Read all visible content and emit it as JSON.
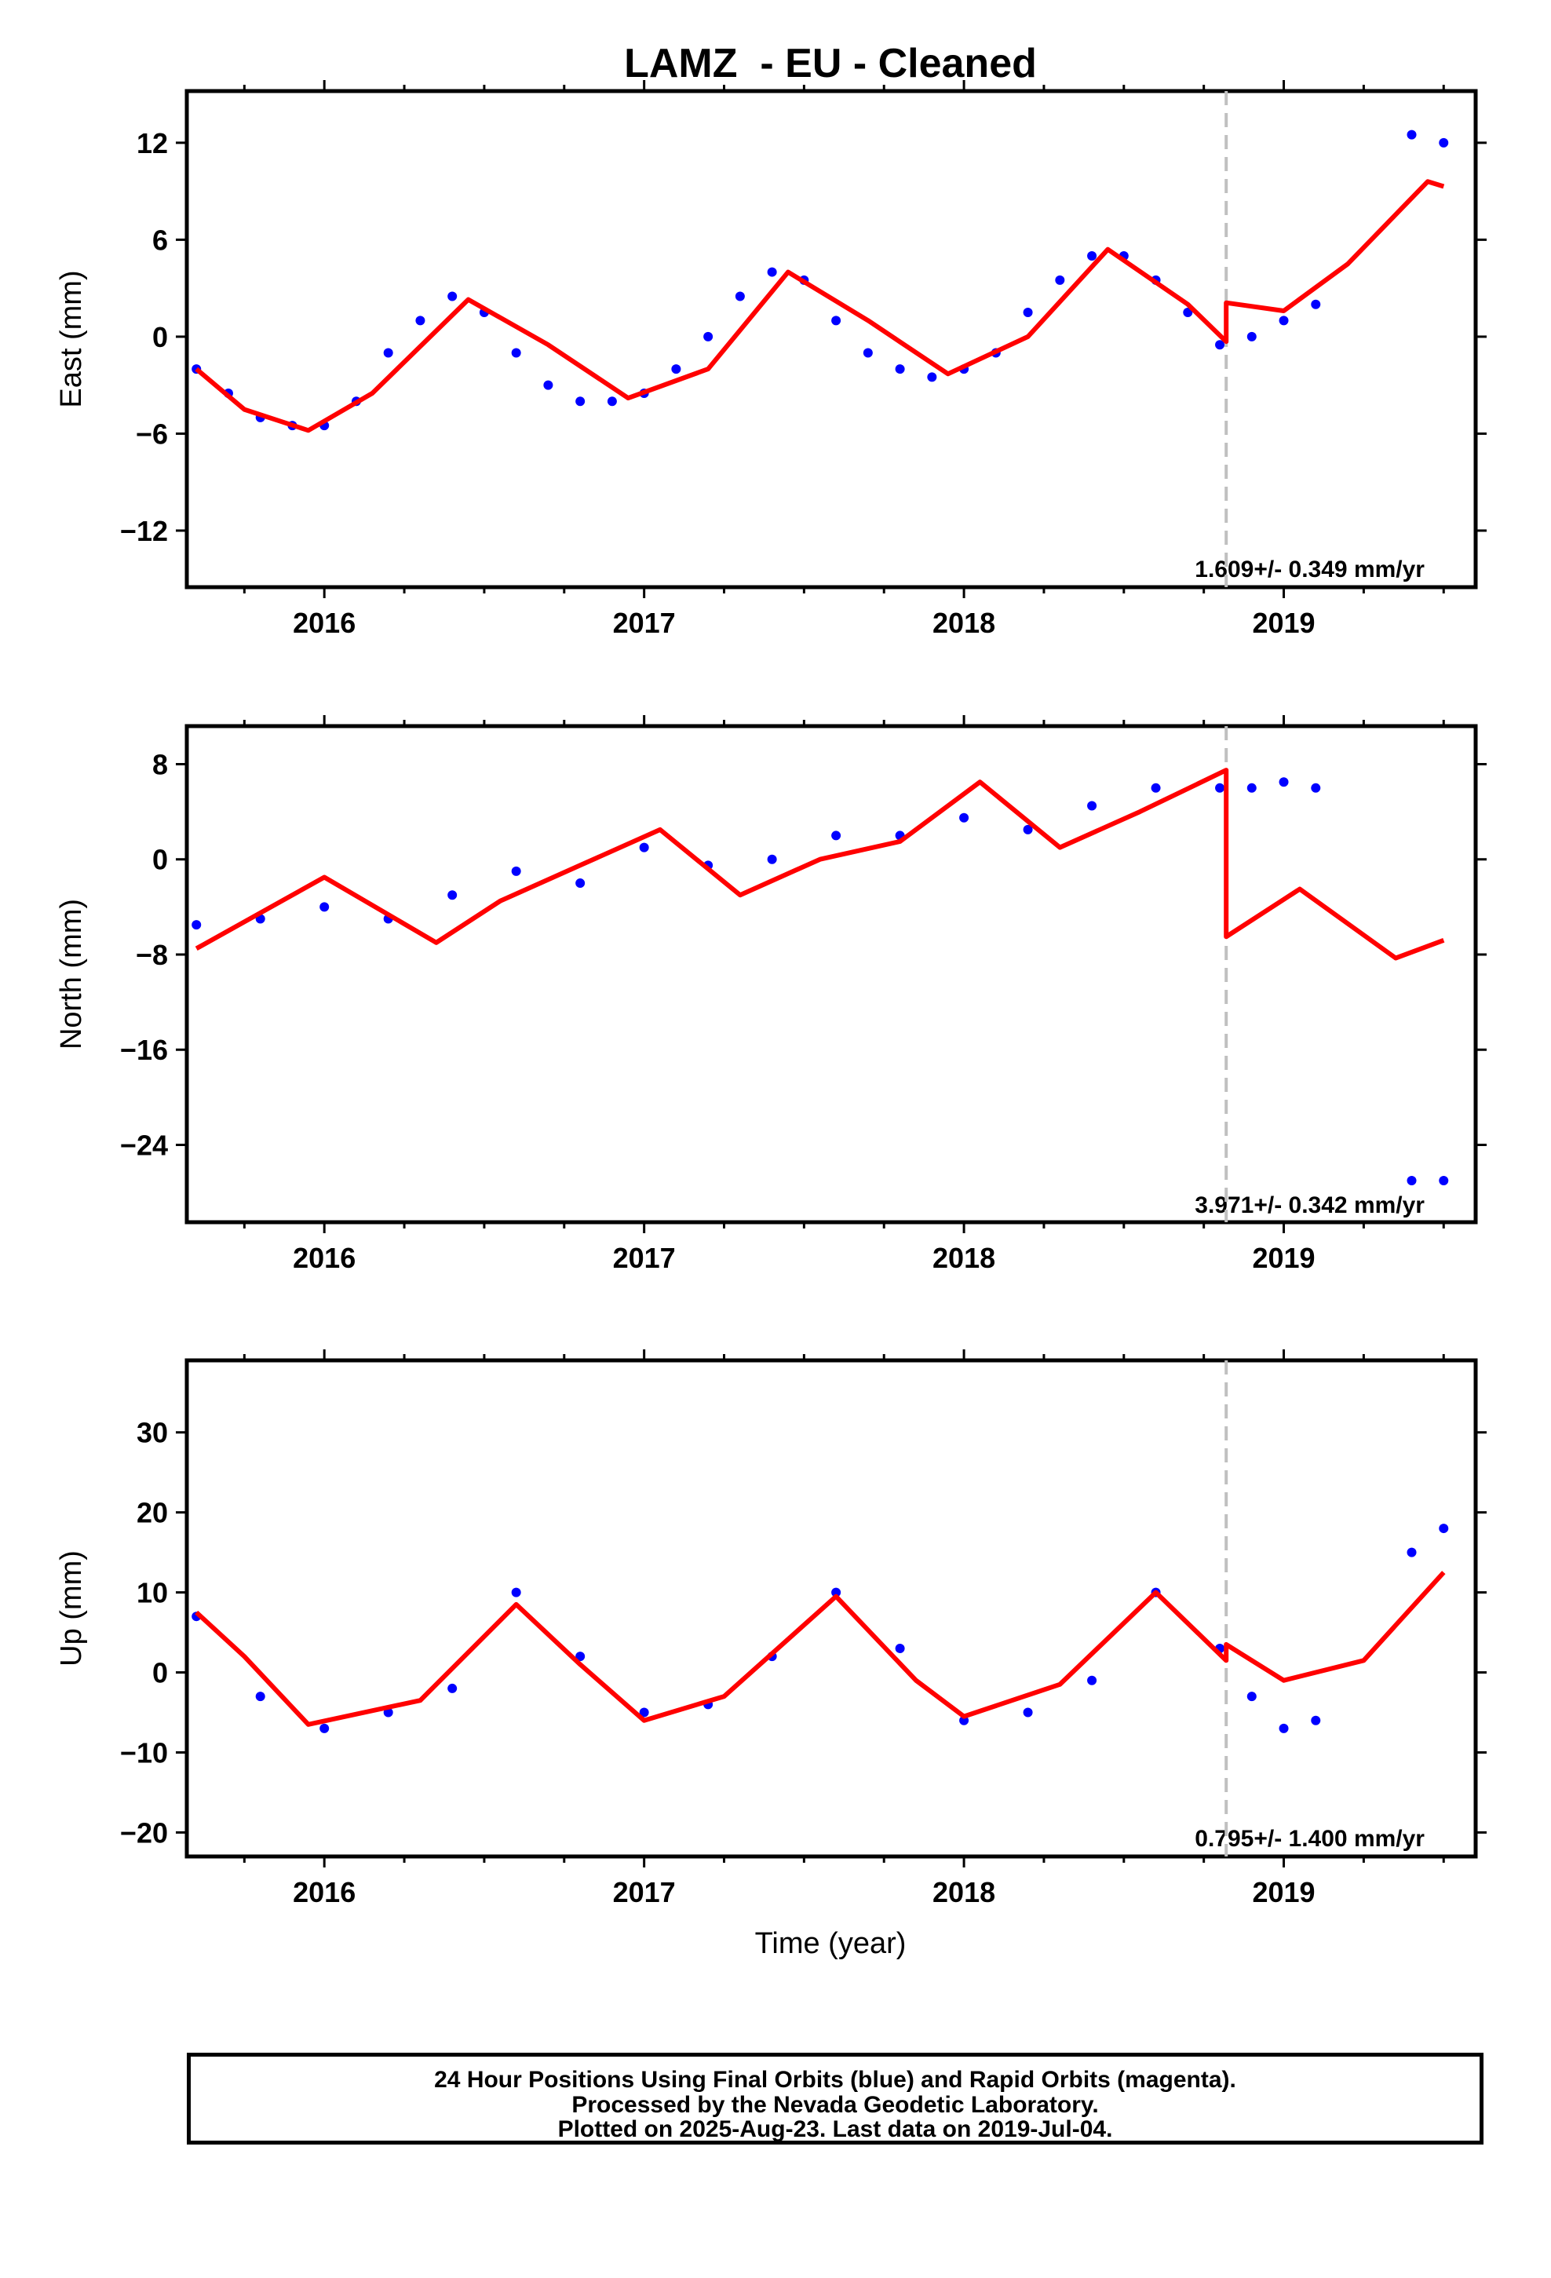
{
  "title": "LAMZ  - EU - Cleaned",
  "xlabel": "Time (year)",
  "footer": {
    "line1": "24 Hour Positions Using Final Orbits (blue) and Rapid Orbits (magenta).",
    "line2": "Processed by the Nevada Geodetic Laboratory.",
    "line3": "Plotted on 2025-Aug-23. Last data on 2019-Jul-04."
  },
  "colors": {
    "points": "#0000ff",
    "model": "#ff0000",
    "step_line": "#c0c0c0",
    "frame": "#000000"
  },
  "chart_data": [
    {
      "type": "scatter",
      "ylabel": "East (mm)",
      "xlim": [
        2015.57,
        2019.6
      ],
      "ylim": [
        -15.5,
        15.2
      ],
      "xticks": [
        2016,
        2017,
        2018,
        2019
      ],
      "yticks": [
        -12,
        -6,
        0,
        6,
        12
      ],
      "grid": false,
      "rate_text": "1.609+/- 0.349 mm/yr",
      "equipment_change": 2018.82,
      "series": [
        {
          "kind": "points",
          "x": [
            2015.6,
            2015.7,
            2015.8,
            2015.9,
            2016.0,
            2016.1,
            2016.2,
            2016.3,
            2016.4,
            2016.5,
            2016.6,
            2016.7,
            2016.8,
            2016.9,
            2017.0,
            2017.1,
            2017.2,
            2017.3,
            2017.4,
            2017.5,
            2017.6,
            2017.7,
            2017.8,
            2017.9,
            2018.0,
            2018.1,
            2018.2,
            2018.3,
            2018.4,
            2018.5,
            2018.6,
            2018.7,
            2018.8,
            2018.9,
            2019.0,
            2019.1,
            2019.4,
            2019.5
          ],
          "y": [
            -2,
            -3.5,
            -5,
            -5.5,
            -5.5,
            -4,
            -1,
            1,
            2.5,
            1.5,
            -1,
            -3,
            -4,
            -4,
            -3.5,
            -2,
            0,
            2.5,
            4,
            3.5,
            1,
            -1,
            -2,
            -2.5,
            -2,
            -1,
            1.5,
            3.5,
            5,
            5,
            3.5,
            1.5,
            -0.5,
            0,
            1,
            2,
            12.5,
            12
          ]
        },
        {
          "kind": "model",
          "x": [
            2015.6,
            2015.75,
            2015.95,
            2016.15,
            2016.45,
            2016.7,
            2016.95,
            2017.2,
            2017.45,
            2017.7,
            2017.95,
            2018.2,
            2018.45,
            2018.7,
            2018.82,
            2018.82,
            2019.0,
            2019.2,
            2019.45,
            2019.5
          ],
          "y": [
            -2,
            -4.5,
            -5.8,
            -3.5,
            2.3,
            -0.5,
            -3.8,
            -2,
            4,
            1,
            -2.3,
            0,
            5.4,
            2,
            -0.3,
            2.1,
            1.6,
            4.5,
            9.6,
            9.3
          ]
        }
      ]
    },
    {
      "type": "scatter",
      "ylabel": "North (mm)",
      "xlim": [
        2015.57,
        2019.6
      ],
      "ylim": [
        -30.5,
        11.2
      ],
      "xticks": [
        2016,
        2017,
        2018,
        2019
      ],
      "yticks": [
        -24,
        -16,
        -8,
        0,
        8
      ],
      "grid": false,
      "rate_text": "3.971+/- 0.342 mm/yr",
      "equipment_change": 2018.82,
      "series": [
        {
          "kind": "points",
          "x": [
            2015.6,
            2015.8,
            2016.0,
            2016.2,
            2016.4,
            2016.6,
            2016.8,
            2017.0,
            2017.2,
            2017.4,
            2017.6,
            2017.8,
            2018.0,
            2018.2,
            2018.4,
            2018.6,
            2018.8,
            2018.9,
            2019.0,
            2019.1,
            2019.4,
            2019.5
          ],
          "y": [
            -5.5,
            -5,
            -4,
            -5,
            -3,
            -1,
            -2,
            1,
            -0.5,
            0,
            2,
            2,
            3.5,
            2.5,
            4.5,
            6,
            6,
            6,
            6.5,
            6,
            -27,
            -27
          ]
        },
        {
          "kind": "model",
          "x": [
            2015.6,
            2016.0,
            2016.35,
            2016.55,
            2016.8,
            2017.05,
            2017.3,
            2017.55,
            2017.8,
            2018.05,
            2018.3,
            2018.55,
            2018.82,
            2018.82,
            2019.05,
            2019.35,
            2019.5
          ],
          "y": [
            -7.5,
            -1.5,
            -7,
            -3.5,
            -0.5,
            2.5,
            -3,
            0,
            1.5,
            6.5,
            1,
            4,
            7.5,
            -6.5,
            -2.5,
            -8.3,
            -6.8
          ]
        }
      ]
    },
    {
      "type": "scatter",
      "ylabel": "Up (mm)",
      "xlim": [
        2015.57,
        2019.6
      ],
      "ylim": [
        -23,
        39
      ],
      "xticks": [
        2016,
        2017,
        2018,
        2019
      ],
      "yticks": [
        -20,
        -10,
        0,
        10,
        20,
        30
      ],
      "grid": false,
      "rate_text": "0.795+/- 1.400 mm/yr",
      "equipment_change": 2018.82,
      "series": [
        {
          "kind": "points",
          "x": [
            2015.6,
            2015.8,
            2016.0,
            2016.2,
            2016.4,
            2016.6,
            2016.8,
            2017.0,
            2017.2,
            2017.4,
            2017.6,
            2017.8,
            2018.0,
            2018.2,
            2018.4,
            2018.6,
            2018.8,
            2018.9,
            2019.0,
            2019.1,
            2019.4,
            2019.5
          ],
          "y": [
            7,
            -3,
            -7,
            -5,
            -2,
            10,
            2,
            -5,
            -4,
            2,
            10,
            3,
            -6,
            -5,
            -1,
            10,
            3,
            -3,
            -7,
            -6,
            15,
            18
          ]
        },
        {
          "kind": "model",
          "x": [
            2015.6,
            2015.75,
            2015.95,
            2016.3,
            2016.6,
            2016.8,
            2017.0,
            2017.25,
            2017.6,
            2017.85,
            2018.0,
            2018.3,
            2018.6,
            2018.82,
            2018.82,
            2019.0,
            2019.25,
            2019.5
          ],
          "y": [
            7.5,
            2,
            -6.5,
            -3.5,
            8.5,
            1,
            -6,
            -3,
            9.5,
            -1,
            -5.5,
            -1.5,
            10,
            1.5,
            3.5,
            -1,
            1.5,
            12.5
          ]
        }
      ]
    }
  ]
}
